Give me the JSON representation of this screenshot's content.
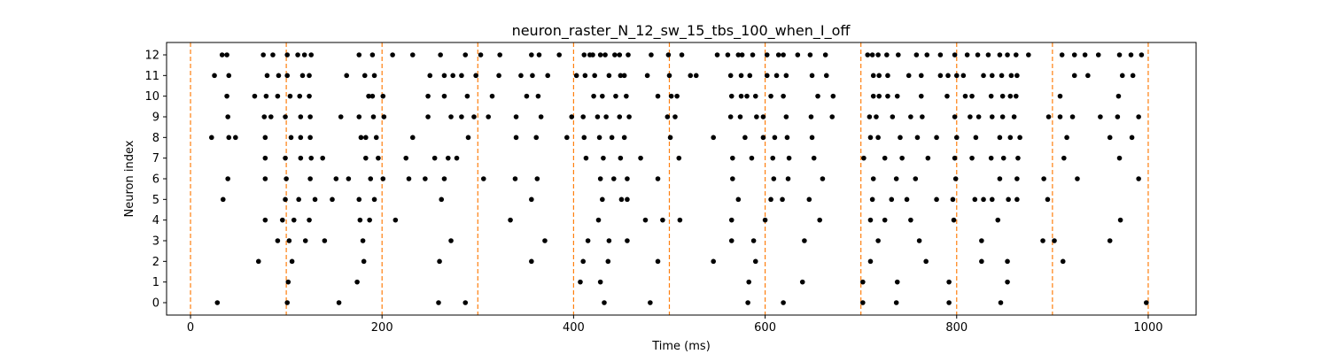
{
  "chart_data": {
    "type": "scatter",
    "title": "neuron_raster_N_12_sw_15_tbs_100_when_I_off",
    "xlabel": "Time (ms)",
    "ylabel": "Neuron index",
    "xlim": [
      -25,
      1050
    ],
    "ylim": [
      -0.6,
      12.6
    ],
    "xticks": [
      0,
      200,
      400,
      600,
      800,
      1000
    ],
    "yticks": [
      0,
      1,
      2,
      3,
      4,
      5,
      6,
      7,
      8,
      9,
      10,
      11,
      12
    ],
    "grid": false,
    "colors": {
      "spike": "#000000",
      "marker_line": "#ff7f0e"
    },
    "vlines": [
      0,
      100,
      200,
      300,
      400,
      500,
      600,
      700,
      800,
      900,
      1000
    ],
    "spikes": [
      {
        "neuron": 0,
        "times": [
          28,
          101,
          155,
          259,
          287,
          432,
          480,
          582,
          619,
          702,
          737,
          792,
          846,
          998
        ]
      },
      {
        "neuron": 1,
        "times": [
          102,
          174,
          407,
          428,
          583,
          639,
          702,
          738,
          792,
          853
        ]
      },
      {
        "neuron": 2,
        "times": [
          71,
          106,
          181,
          260,
          356,
          410,
          436,
          488,
          546,
          590,
          710,
          768,
          826,
          853,
          911
        ]
      },
      {
        "neuron": 3,
        "times": [
          91,
          103,
          120,
          140,
          180,
          272,
          370,
          415,
          437,
          456,
          565,
          588,
          641,
          718,
          761,
          826,
          890,
          902,
          960
        ]
      },
      {
        "neuron": 4,
        "times": [
          78,
          96,
          108,
          124,
          177,
          187,
          214,
          334,
          426,
          475,
          493,
          511,
          565,
          600,
          657,
          710,
          725,
          752,
          797,
          843,
          971
        ]
      },
      {
        "neuron": 5,
        "times": [
          34,
          99,
          113,
          130,
          148,
          176,
          192,
          262,
          356,
          430,
          450,
          456,
          572,
          606,
          618,
          646,
          712,
          732,
          748,
          779,
          796,
          819,
          828,
          837,
          854,
          863,
          895
        ]
      },
      {
        "neuron": 6,
        "times": [
          39,
          78,
          100,
          125,
          152,
          165,
          188,
          201,
          228,
          245,
          265,
          306,
          339,
          362,
          428,
          442,
          456,
          488,
          566,
          609,
          624,
          660,
          713,
          737,
          757,
          799,
          845,
          863,
          891,
          926,
          990
        ]
      },
      {
        "neuron": 7,
        "times": [
          78,
          99,
          115,
          126,
          138,
          183,
          196,
          225,
          255,
          269,
          278,
          413,
          431,
          449,
          470,
          510,
          566,
          586,
          608,
          625,
          651,
          703,
          725,
          743,
          770,
          798,
          816,
          836,
          849,
          864,
          912,
          970
        ]
      },
      {
        "neuron": 8,
        "times": [
          22,
          40,
          47,
          78,
          105,
          115,
          125,
          178,
          183,
          194,
          232,
          290,
          340,
          361,
          393,
          411,
          427,
          440,
          453,
          501,
          546,
          579,
          598,
          610,
          623,
          649,
          710,
          718,
          741,
          759,
          779,
          800,
          820,
          845,
          856,
          866,
          915,
          960,
          983
        ]
      },
      {
        "neuron": 9,
        "times": [
          39,
          77,
          84,
          99,
          115,
          125,
          157,
          176,
          191,
          202,
          248,
          272,
          283,
          296,
          311,
          340,
          366,
          398,
          410,
          425,
          434,
          448,
          458,
          498,
          506,
          564,
          574,
          591,
          598,
          622,
          648,
          670,
          709,
          716,
          733,
          752,
          764,
          798,
          814,
          823,
          837,
          848,
          860,
          896,
          908,
          921,
          950,
          968,
          990
        ]
      },
      {
        "neuron": 10,
        "times": [
          38,
          67,
          79,
          91,
          104,
          114,
          124,
          186,
          190,
          201,
          248,
          265,
          289,
          315,
          351,
          363,
          421,
          430,
          444,
          455,
          488,
          502,
          508,
          565,
          575,
          581,
          590,
          606,
          619,
          655,
          671,
          713,
          719,
          728,
          738,
          763,
          790,
          809,
          816,
          836,
          848,
          856,
          862,
          908,
          969
        ]
      },
      {
        "neuron": 11,
        "times": [
          25,
          40,
          80,
          92,
          101,
          117,
          124,
          163,
          182,
          192,
          250,
          265,
          274,
          283,
          298,
          322,
          345,
          357,
          373,
          403,
          412,
          422,
          437,
          449,
          453,
          477,
          500,
          522,
          528,
          564,
          575,
          584,
          602,
          612,
          622,
          649,
          664,
          713,
          719,
          728,
          750,
          763,
          783,
          791,
          800,
          807,
          828,
          837,
          847,
          857,
          863,
          923,
          937,
          973,
          984
        ]
      },
      {
        "neuron": 12,
        "times": [
          33,
          38,
          76,
          86,
          101,
          112,
          119,
          126,
          176,
          190,
          211,
          232,
          261,
          287,
          303,
          323,
          356,
          364,
          385,
          411,
          417,
          420,
          428,
          433,
          443,
          448,
          457,
          481,
          499,
          513,
          550,
          561,
          572,
          576,
          587,
          602,
          614,
          619,
          634,
          647,
          663,
          707,
          712,
          718,
          727,
          739,
          758,
          769,
          783,
          798,
          811,
          822,
          833,
          845,
          853,
          862,
          875,
          910,
          923,
          934,
          948,
          970,
          982,
          993
        ]
      }
    ]
  }
}
